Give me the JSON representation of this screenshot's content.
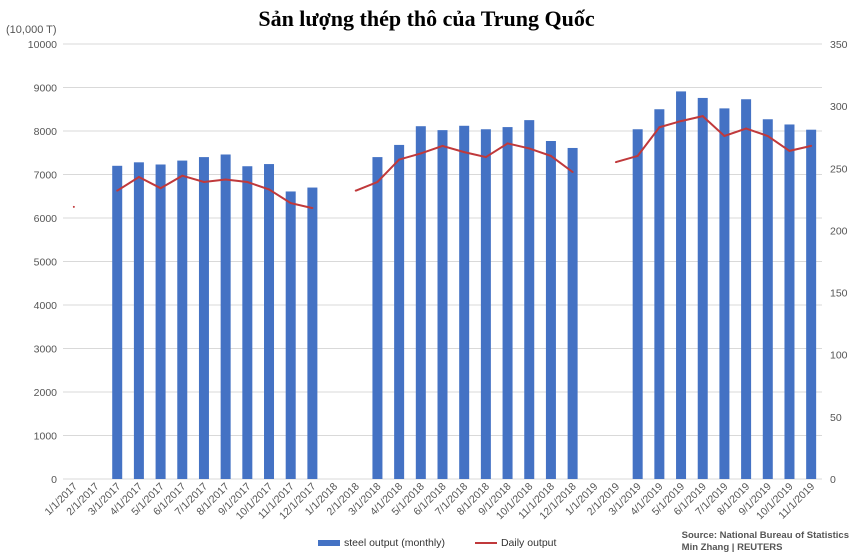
{
  "title": "Sản lượng thép thô của Trung Quốc",
  "y_unit": "(10,000 T)",
  "source_line1": "Source: National Bureau of Statistics",
  "source_line2": "Min Zhang | REUTERS",
  "colors": {
    "bar": "#4472c4",
    "line": "#c0393b",
    "grid": "#d9d9d9"
  },
  "chart_data": {
    "type": "bar",
    "title": "Sản lượng thép thô của Trung Quốc",
    "categories": [
      "1/1/2017",
      "2/1/2017",
      "3/1/2017",
      "4/1/2017",
      "5/1/2017",
      "6/1/2017",
      "7/1/2017",
      "8/1/2017",
      "9/1/2017",
      "10/1/2017",
      "11/1/2017",
      "12/1/2017",
      "1/1/2018",
      "2/1/2018",
      "3/1/2018",
      "4/1/2018",
      "5/1/2018",
      "6/1/2018",
      "7/1/2018",
      "8/1/2018",
      "9/1/2018",
      "10/1/2018",
      "11/1/2018",
      "12/1/2018",
      "1/1/2019",
      "2/1/2019",
      "3/1/2019",
      "4/1/2019",
      "5/1/2019",
      "6/1/2019",
      "7/1/2019",
      "8/1/2019",
      "9/1/2019",
      "10/1/2019",
      "11/1/2019"
    ],
    "ylim": [
      0,
      10000
    ],
    "y2lim": [
      0,
      350
    ],
    "y_ticks": [
      0,
      1000,
      2000,
      3000,
      4000,
      5000,
      6000,
      7000,
      8000,
      9000,
      10000
    ],
    "y2_ticks": [
      0,
      50,
      100,
      150,
      200,
      250,
      300,
      350
    ],
    "legend_position": "bottom",
    "series": [
      {
        "name": "steel output (monthly)",
        "type": "bar",
        "axis": "left",
        "values": [
          null,
          null,
          7200,
          7280,
          7230,
          7320,
          7400,
          7460,
          7190,
          7240,
          6610,
          6700,
          null,
          null,
          7400,
          7680,
          8110,
          8020,
          8120,
          8040,
          8090,
          8250,
          7770,
          7610,
          null,
          null,
          8040,
          8500,
          8910,
          8760,
          8520,
          8730,
          8270,
          8150,
          8030
        ]
      },
      {
        "name": "Daily output",
        "type": "line",
        "axis": "right",
        "values": [
          219,
          null,
          232,
          243,
          234,
          244,
          239,
          241,
          239,
          233,
          222,
          218,
          null,
          232,
          239,
          257,
          262,
          268,
          263,
          259,
          270,
          266,
          260,
          247,
          null,
          255,
          260,
          283,
          288,
          292,
          276,
          282,
          276,
          264,
          268
        ]
      }
    ]
  }
}
